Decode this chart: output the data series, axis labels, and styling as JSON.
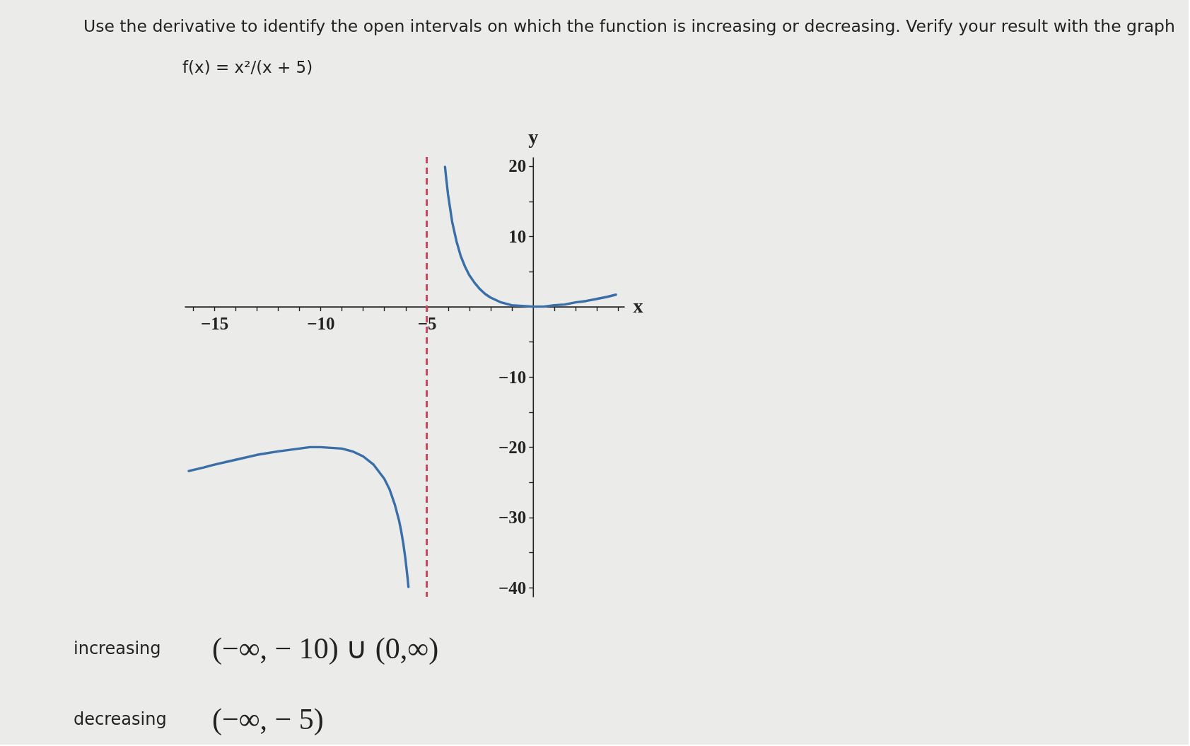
{
  "chart_data": {
    "type": "line",
    "title": "Use the derivative to identify the open intervals on which the function is increasing or decreasing. Verify your result with the graph",
    "subtitle": "f(x) = x²/(x + 5)",
    "xlabel": "x",
    "ylabel": "y",
    "xlim": [
      -16.4,
      4.3
    ],
    "ylim": [
      -41.3,
      21.3
    ],
    "xticks": [
      {
        "value": -16,
        "label": null
      },
      -15,
      {
        "value": -14,
        "label": null
      },
      {
        "value": -13,
        "label": null
      },
      {
        "value": -12,
        "label": null
      },
      {
        "value": -11,
        "label": null
      },
      -10,
      {
        "value": -9,
        "label": null
      },
      {
        "value": -8,
        "label": null
      },
      {
        "value": -7,
        "label": null
      },
      {
        "value": -6,
        "label": null
      },
      -5,
      {
        "value": -4,
        "label": null
      },
      {
        "value": -3,
        "label": null
      },
      {
        "value": -2,
        "label": null
      },
      {
        "value": -1,
        "label": null
      },
      {
        "value": 1,
        "label": null
      },
      {
        "value": 2,
        "label": null
      },
      {
        "value": 3,
        "label": null
      },
      {
        "value": 4,
        "label": null
      }
    ],
    "yticks": [
      -40,
      {
        "value": -35,
        "label": null
      },
      -30,
      {
        "value": -25,
        "label": null
      },
      -20,
      {
        "value": -15,
        "label": null
      },
      -10,
      {
        "value": -5,
        "label": null
      },
      {
        "value": 5,
        "label": null
      },
      10,
      {
        "value": 15,
        "label": null
      },
      20
    ],
    "grid": false,
    "series": [
      {
        "color": "#3a6ea8",
        "x": [
          -16.2,
          -15.5,
          -15,
          -14,
          -13,
          -12,
          -11,
          -10.5,
          -10,
          -9.5,
          -9,
          -8.5,
          -8,
          -7.5,
          -7,
          -6.75,
          -6.5,
          -6.3,
          -6.2,
          -6.1,
          -6.0,
          -5.9,
          -5.86
        ],
        "values": [
          -23.4,
          -22.9,
          -22.5,
          -21.8,
          -21.1,
          -20.6,
          -20.2,
          -20.0,
          -20,
          -20.1,
          -20.2,
          -20.6,
          -21.3,
          -22.5,
          -24.5,
          -26.0,
          -28.2,
          -30.5,
          -32.0,
          -33.8,
          -36,
          -38.7,
          -39.9
        ]
      },
      {
        "color": "#3a6ea8",
        "x": [
          -4.14,
          -4.1,
          -4.0,
          -3.8,
          -3.6,
          -3.4,
          -3.2,
          -3.0,
          -2.75,
          -2.5,
          -2.25,
          -2,
          -1.5,
          -1,
          -0.5,
          0,
          0.5,
          1,
          1.5,
          2,
          2.5,
          3,
          3.5,
          3.9
        ],
        "values": [
          19.9,
          18.7,
          16,
          12.0,
          9.3,
          7.2,
          5.7,
          4.5,
          3.4,
          2.5,
          1.8,
          1.3,
          0.6,
          0.2,
          0.1,
          0,
          0.0,
          0.2,
          0.3,
          0.6,
          0.8,
          1.1,
          1.4,
          1.7
        ]
      }
    ],
    "ref_lines": [
      {
        "axis": "x",
        "value": -5,
        "color": "#c9465f",
        "line_style": "dashed"
      }
    ],
    "annotations": [
      "increasing",
      "(−∞, − 10) ∪ (0,∞)",
      "decreasing",
      "(−∞, − 5)"
    ]
  }
}
